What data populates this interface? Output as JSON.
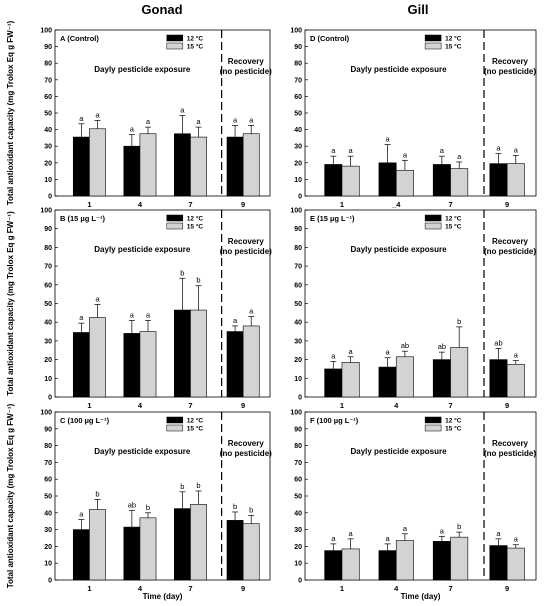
{
  "column_titles": [
    "Gonad",
    "Gill"
  ],
  "colors": {
    "temp_12": "#000000",
    "temp_15": "#d3d3d3"
  },
  "chart_data": [
    {
      "type": "bar",
      "panel": "A (Control)",
      "column": "Gonad",
      "categories": [
        "1",
        "4",
        "7",
        "9"
      ],
      "series": [
        {
          "name": "12 °C",
          "values": [
            35.5,
            30,
            37.5,
            35.5
          ],
          "errors": [
            8,
            7,
            11,
            7
          ],
          "letters": [
            "a",
            "a",
            "a",
            "a"
          ]
        },
        {
          "name": "15 °C",
          "values": [
            40.5,
            37.5,
            35.5,
            37.5
          ],
          "errors": [
            5,
            4,
            6,
            5
          ],
          "letters": [
            "a",
            "a",
            "a",
            "a"
          ]
        }
      ],
      "ylim": [
        0,
        100
      ],
      "yticks": [
        0,
        10,
        20,
        30,
        40,
        50,
        60,
        70,
        80,
        90,
        100
      ],
      "ylabel": "Total antioxidant capacity (mg Trolox Eq g FW⁻¹)",
      "xlabel": "",
      "annotations": [
        "Dayly pesticide exposure",
        "Recovery",
        "(no pesticide)"
      ]
    },
    {
      "type": "bar",
      "panel": "B (15 µg L⁻¹)",
      "column": "Gonad",
      "categories": [
        "1",
        "4",
        "7",
        "9"
      ],
      "series": [
        {
          "name": "12 °C",
          "values": [
            34.5,
            34,
            46.5,
            35
          ],
          "errors": [
            5,
            7,
            17,
            3
          ],
          "letters": [
            "a",
            "a",
            "b",
            "a"
          ]
        },
        {
          "name": "15 °C",
          "values": [
            42.5,
            35,
            46.5,
            38
          ],
          "errors": [
            7,
            6,
            13,
            5
          ],
          "letters": [
            "a",
            "a",
            "b",
            "a"
          ]
        }
      ],
      "ylim": [
        0,
        100
      ],
      "yticks": [
        0,
        10,
        20,
        30,
        40,
        50,
        60,
        70,
        80,
        90,
        100
      ],
      "ylabel": "Total antioxidant capacity (mg Trolox Eq g FW⁻¹)",
      "xlabel": "",
      "annotations": [
        "Dayly pesticide exposure",
        "Recovery",
        "(no pesticide)"
      ]
    },
    {
      "type": "bar",
      "panel": "C (100 µg L⁻¹)",
      "column": "Gonad",
      "categories": [
        "1",
        "4",
        "7",
        "9"
      ],
      "series": [
        {
          "name": "12 °C",
          "values": [
            30,
            31.5,
            42.5,
            35.5
          ],
          "errors": [
            6,
            10,
            10,
            5
          ],
          "letters": [
            "a",
            "ab",
            "b",
            "b"
          ]
        },
        {
          "name": "15 °C",
          "values": [
            42,
            37,
            45,
            33.5
          ],
          "errors": [
            6,
            3,
            8,
            5
          ],
          "letters": [
            "b",
            "b",
            "b",
            "b"
          ]
        }
      ],
      "ylim": [
        0,
        100
      ],
      "yticks": [
        0,
        10,
        20,
        30,
        40,
        50,
        60,
        70,
        80,
        90,
        100
      ],
      "ylabel": "Total antioxidant capacity (mg Trolox Eq g FW⁻¹)",
      "xlabel": "Time (day)",
      "annotations": [
        "Dayly pesticide exposure",
        "Recovery",
        "(no pesticide)"
      ]
    },
    {
      "type": "bar",
      "panel": "D (Control)",
      "column": "Gill",
      "categories": [
        "1",
        "_4",
        "7",
        "9"
      ],
      "series": [
        {
          "name": "12 °C",
          "values": [
            19,
            20,
            19,
            19.5
          ],
          "errors": [
            5,
            11,
            5,
            6
          ],
          "letters": [
            "a",
            "a",
            "a",
            "a"
          ]
        },
        {
          "name": "15 °C",
          "values": [
            18,
            15.5,
            16.5,
            19.5
          ],
          "errors": [
            6,
            6,
            4,
            5
          ],
          "letters": [
            "a",
            "a",
            "a",
            "a"
          ]
        }
      ],
      "ylim": [
        0,
        100
      ],
      "yticks": [
        0,
        10,
        20,
        30,
        40,
        50,
        60,
        70,
        80,
        90,
        100
      ],
      "ylabel": "",
      "xlabel": "",
      "annotations": [
        "Dayly pesticide exposure",
        "Recovery",
        "(no pesticide)"
      ]
    },
    {
      "type": "bar",
      "panel": "E (15 µg L⁻¹)",
      "column": "Gill",
      "categories": [
        "1",
        "4",
        "7",
        "9"
      ],
      "series": [
        {
          "name": "12 °C",
          "values": [
            15,
            16,
            20,
            20
          ],
          "errors": [
            4,
            5,
            4,
            6
          ],
          "letters": [
            "a",
            "a",
            "ab",
            "ab"
          ]
        },
        {
          "name": "15 °C",
          "values": [
            18.5,
            21.5,
            26.5,
            17.5
          ],
          "errors": [
            3,
            3,
            11,
            2
          ],
          "letters": [
            "a",
            "ab",
            "b",
            "a"
          ]
        }
      ],
      "ylim": [
        0,
        100
      ],
      "yticks": [
        0,
        10,
        20,
        30,
        40,
        50,
        60,
        70,
        80,
        90,
        100
      ],
      "ylabel": "",
      "xlabel": "",
      "annotations": [
        "Dayly pesticide exposure",
        "Recovery",
        "(no pesticide)"
      ]
    },
    {
      "type": "bar",
      "panel": "F (100 µg L⁻¹)",
      "column": "Gill",
      "categories": [
        "1",
        "4",
        "7",
        "9"
      ],
      "series": [
        {
          "name": "12 °C",
          "values": [
            17.5,
            17.5,
            23,
            20.5
          ],
          "errors": [
            4,
            4,
            3,
            4
          ],
          "letters": [
            "a",
            "a",
            "a",
            "a"
          ]
        },
        {
          "name": "15 °C",
          "values": [
            18.5,
            23.5,
            25.5,
            19
          ],
          "errors": [
            6,
            4,
            3,
            2
          ],
          "letters": [
            "a",
            "a",
            "b",
            "a"
          ]
        }
      ],
      "ylim": [
        0,
        100
      ],
      "yticks": [
        0,
        10,
        20,
        30,
        40,
        50,
        60,
        70,
        80,
        90,
        100
      ],
      "ylabel": "",
      "xlabel": "Time (day)",
      "annotations": [
        "Dayly pesticide exposure",
        "Recovery",
        "(no pesticide)"
      ]
    }
  ]
}
